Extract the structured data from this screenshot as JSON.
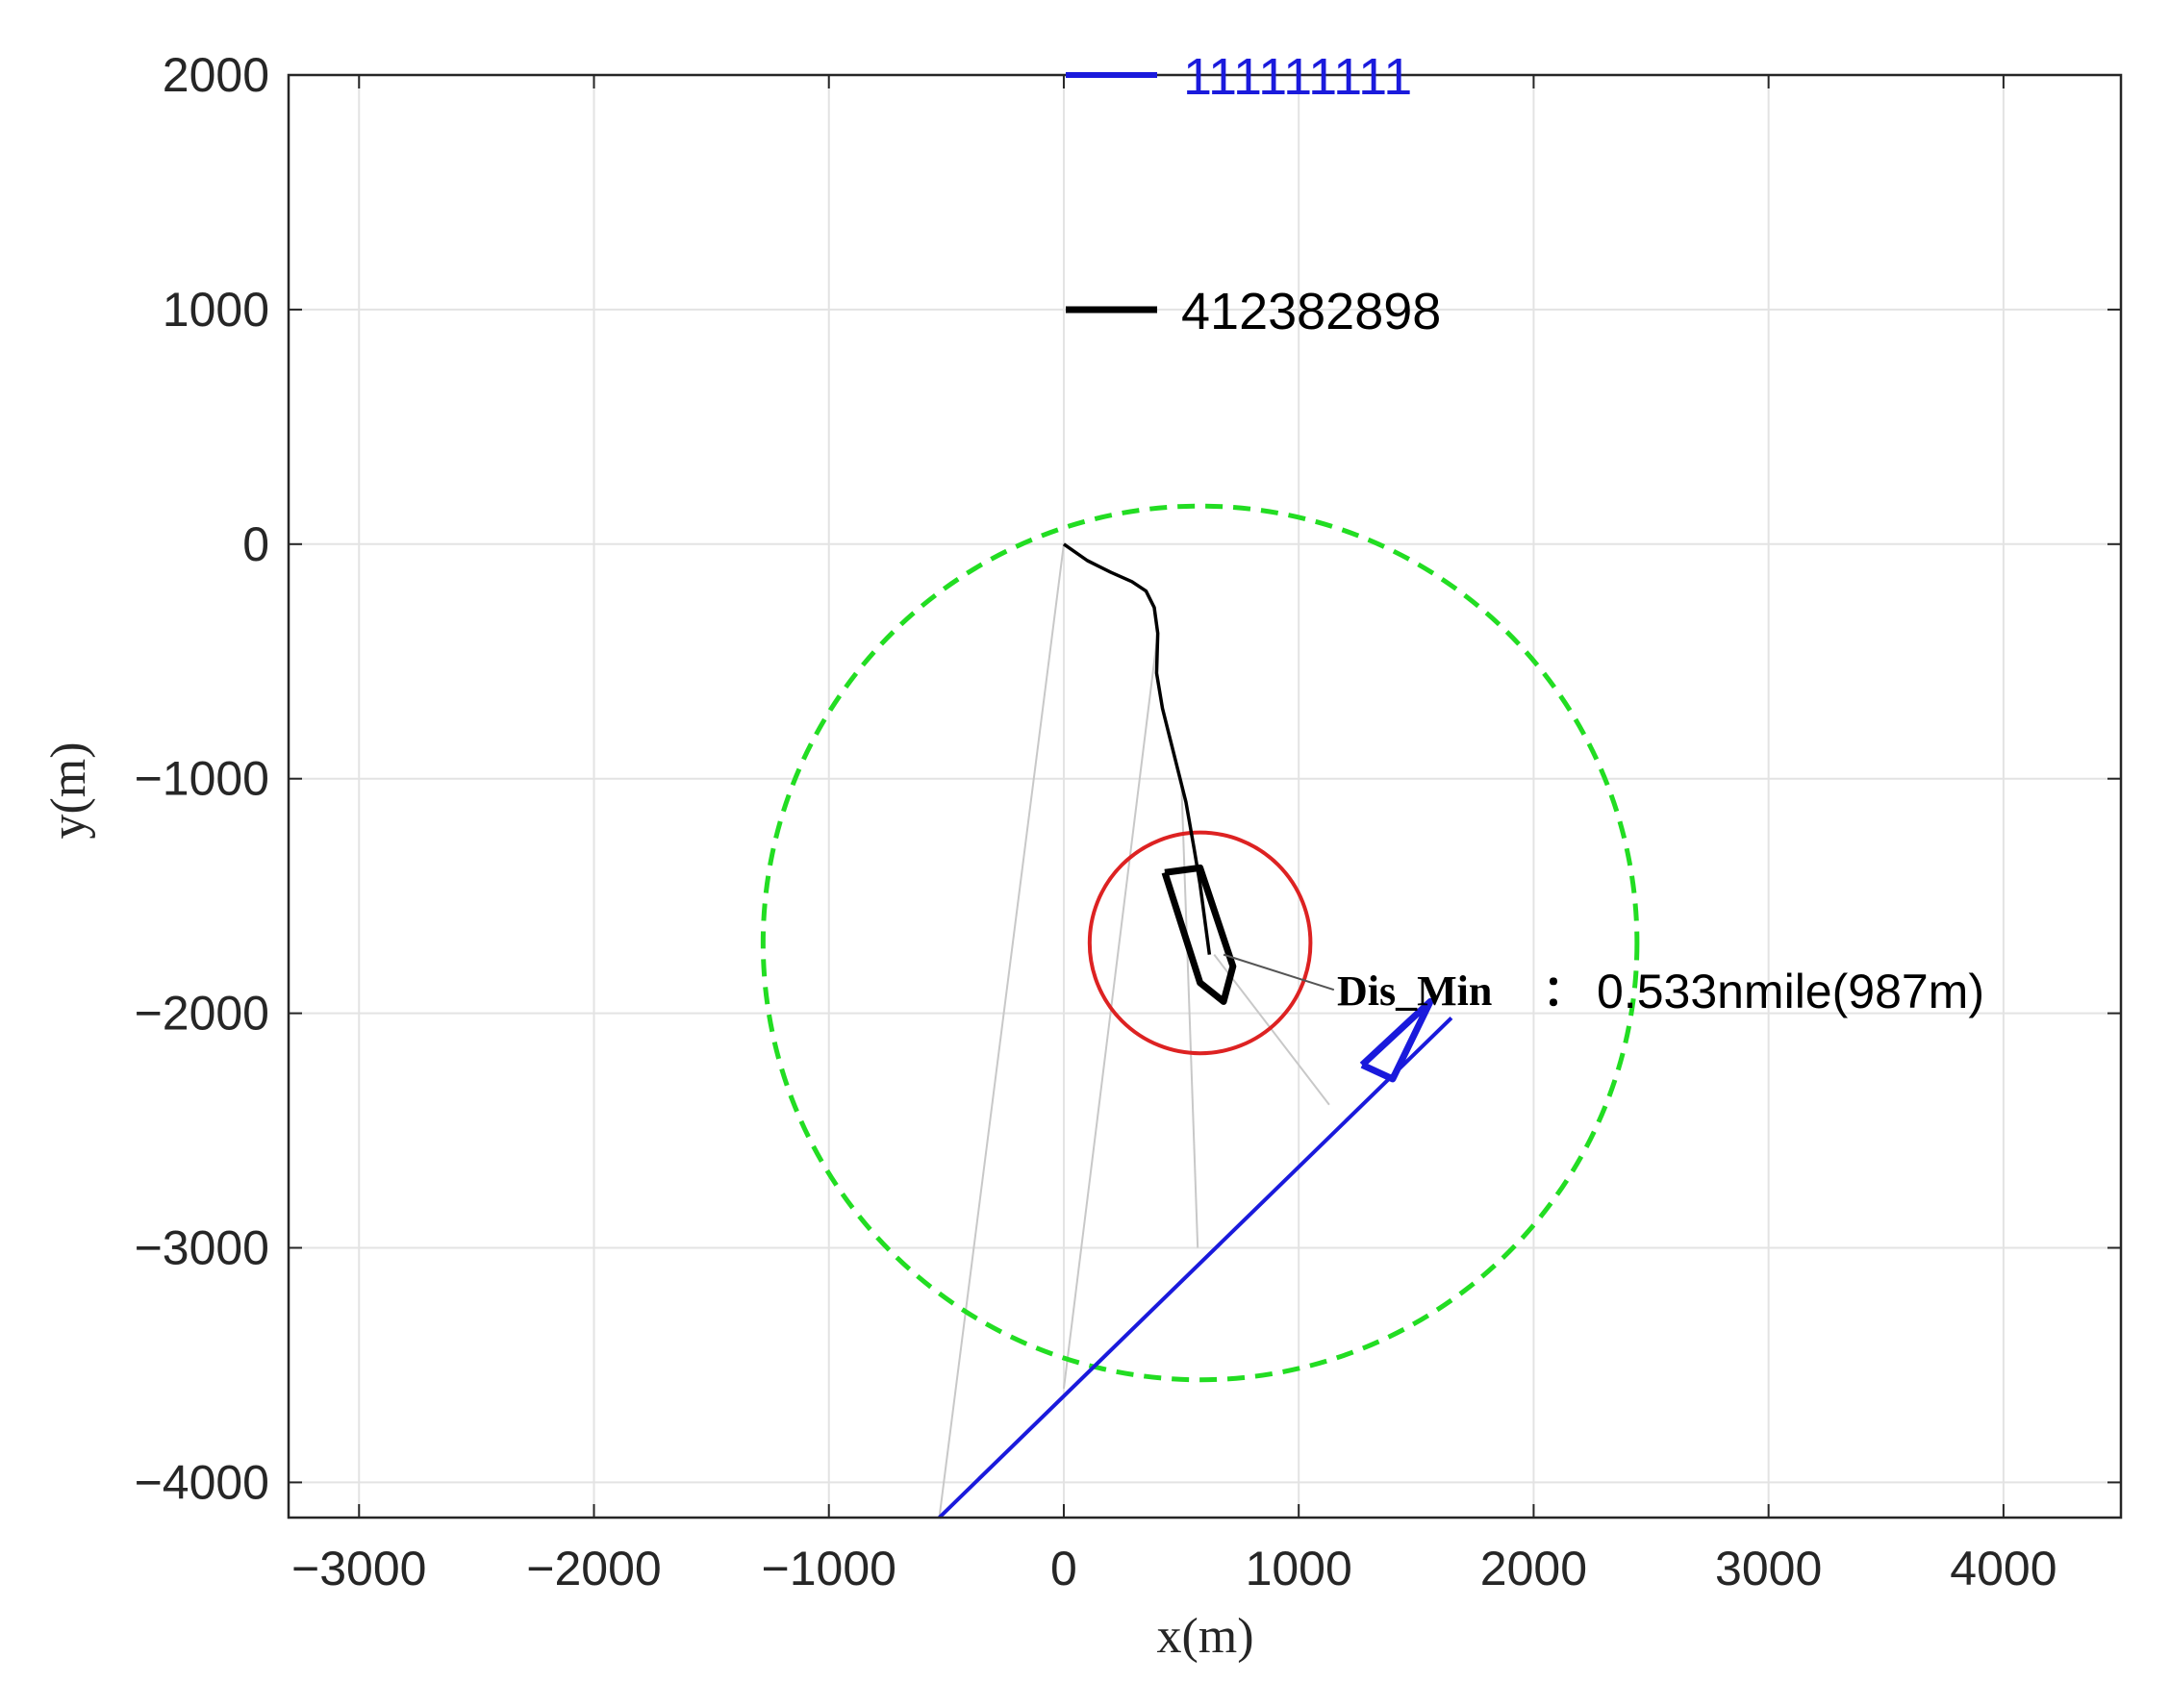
{
  "chart_data": {
    "type": "line",
    "xlabel": "x(m)",
    "ylabel": "y(m)",
    "xlim": [
      -3300,
      4500
    ],
    "ylim": [
      -4150,
      2000
    ],
    "x_ticks": [
      -3000,
      -2000,
      -1000,
      0,
      1000,
      2000,
      3000,
      4000
    ],
    "y_ticks": [
      2000,
      1000,
      0,
      -1000,
      -2000,
      -3000,
      -4000
    ],
    "x_tick_labels": [
      "−3000",
      "−2000",
      "−1000",
      "0",
      "1000",
      "2000",
      "3000",
      "4000"
    ],
    "y_tick_labels": [
      "2000",
      "1000",
      "0",
      "−1000",
      "−2000",
      "−3000",
      "−4000"
    ],
    "grid": true,
    "legend_placement": "top-center",
    "series": [
      {
        "name": "111111111",
        "color": "#1a1adc",
        "x": [
          -530,
          1650
        ],
        "y": [
          -4150,
          -2020
        ]
      },
      {
        "name": "412382898",
        "color": "#000000",
        "x": [
          0,
          100,
          200,
          290,
          350,
          385,
          400,
          395,
          420,
          470,
          520,
          555,
          580,
          600,
          620
        ],
        "y": [
          0,
          -70,
          -120,
          -160,
          -200,
          -270,
          -380,
          -550,
          -700,
          -900,
          -1100,
          -1300,
          -1450,
          -1600,
          -1750
        ]
      }
    ],
    "sight_lines": [
      {
        "from": [
          0,
          0
        ],
        "to": [
          -530,
          -4150
        ]
      },
      {
        "from": [
          400,
          -380
        ],
        "to": [
          0,
          -3600
        ]
      },
      {
        "from": [
          500,
          -1000
        ],
        "to": [
          570,
          -3000
        ]
      },
      {
        "from": [
          640,
          -1750
        ],
        "to": [
          1130,
          -2390
        ]
      }
    ],
    "ship_outline_black": {
      "x": [
        430,
        580,
        720,
        680,
        580,
        430
      ],
      "y": [
        -1400,
        -1380,
        -1800,
        -1950,
        -1870,
        -1400
      ]
    },
    "ship_outline_blue": {
      "x": [
        1270,
        1560,
        1400,
        1270
      ],
      "y": [
        -2220,
        -1950,
        -2280,
        -2220
      ]
    },
    "circles": [
      {
        "name": "safety-range",
        "center": [
          580,
          -1700
        ],
        "radius": 1860,
        "color": "#22dd22",
        "style": "dashed"
      },
      {
        "name": "close-approach",
        "center": [
          580,
          -1700
        ],
        "radius": 470,
        "color": "#dd2222",
        "style": "solid"
      }
    ],
    "annotation": {
      "key": "Dis_Min",
      "separator": "：",
      "value": "0.533nmile(987m)",
      "point": [
        680,
        -1750
      ],
      "text_at": [
        1150,
        -1900
      ]
    }
  }
}
